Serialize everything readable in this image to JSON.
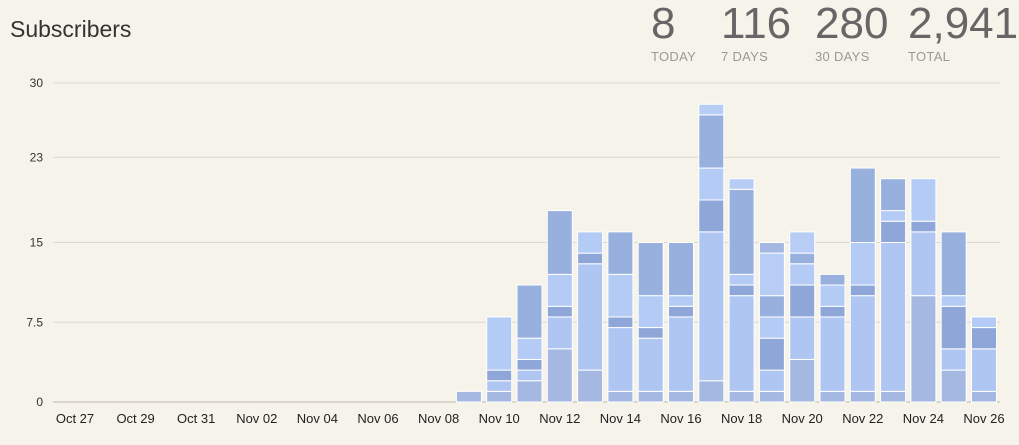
{
  "header": {
    "title": "Subscribers",
    "stats": [
      {
        "value": "8",
        "label": "TODAY"
      },
      {
        "value": "116",
        "label": "7 DAYS"
      },
      {
        "value": "280",
        "label": "30 DAYS"
      },
      {
        "value": "2,941",
        "label": "TOTAL"
      }
    ]
  },
  "chart_data": {
    "type": "bar",
    "stacked": true,
    "title": "",
    "xlabel": "",
    "ylabel": "",
    "ylim": [
      0,
      30
    ],
    "yticks": [
      "0",
      "7.5",
      "15",
      "23",
      "30"
    ],
    "grid": true,
    "legend": "none",
    "colors": [
      "#a4b8e2",
      "#b0c6f2",
      "#8fa7d8",
      "#b4cbf5",
      "#98b0de",
      "#b8cdf6"
    ],
    "categories": [
      "Oct 27",
      "Oct 28",
      "Oct 29",
      "Oct 30",
      "Oct 31",
      "Nov 01",
      "Nov 02",
      "Nov 03",
      "Nov 04",
      "Nov 05",
      "Nov 06",
      "Nov 07",
      "Nov 08",
      "Nov 09",
      "Nov 10",
      "Nov 11",
      "Nov 12",
      "Nov 13",
      "Nov 14",
      "Nov 15",
      "Nov 16",
      "Nov 17",
      "Nov 18",
      "Nov 19",
      "Nov 20",
      "Nov 21",
      "Nov 22",
      "Nov 23",
      "Nov 24",
      "Nov 25",
      "Nov 26"
    ],
    "tick_labels": [
      "Oct 27",
      "Oct 29",
      "Oct 31",
      "Nov 02",
      "Nov 04",
      "Nov 06",
      "Nov 08",
      "Nov 10",
      "Nov 12",
      "Nov 14",
      "Nov 16",
      "Nov 18",
      "Nov 20",
      "Nov 22",
      "Nov 24",
      "Nov 26"
    ],
    "stacks": [
      [],
      [],
      [],
      [],
      [],
      [],
      [],
      [],
      [],
      [],
      [],
      [],
      [],
      [
        1
      ],
      [
        1,
        1,
        1,
        5
      ],
      [
        2,
        1,
        1,
        2,
        5
      ],
      [
        5,
        3,
        1,
        3,
        6
      ],
      [
        3,
        10,
        1,
        2
      ],
      [
        1,
        6,
        1,
        4,
        4
      ],
      [
        1,
        5,
        1,
        3,
        5
      ],
      [
        1,
        7,
        1,
        1,
        5
      ],
      [
        2,
        14,
        3,
        3,
        5,
        1
      ],
      [
        1,
        9,
        1,
        1,
        8,
        1
      ],
      [
        1,
        2,
        3,
        2,
        2,
        4,
        1
      ],
      [
        4,
        4,
        3,
        2,
        1,
        2
      ],
      [
        1,
        7,
        1,
        2,
        1
      ],
      [
        1,
        9,
        1,
        4,
        7
      ],
      [
        1,
        14,
        2,
        1,
        3
      ],
      [
        10,
        6,
        1,
        4
      ],
      [
        3,
        2,
        4,
        1,
        6
      ],
      [
        1,
        4,
        2,
        1
      ]
    ]
  }
}
